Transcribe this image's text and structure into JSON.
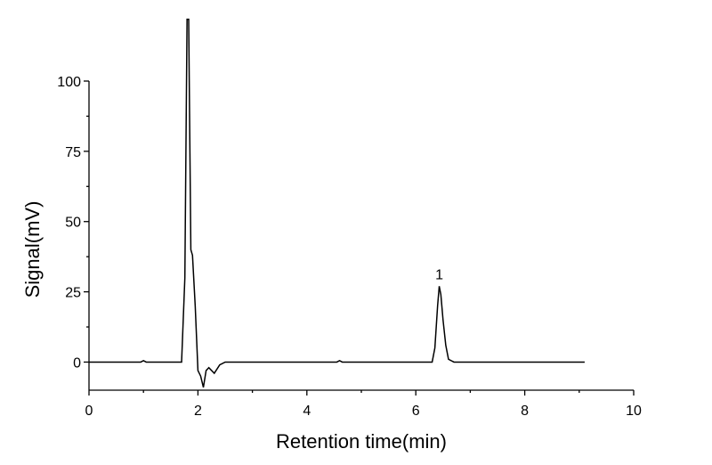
{
  "chart_data": {
    "type": "line",
    "x_label": "Retention time(min)",
    "y_label": "Signal(mV)",
    "series": [
      {
        "color": "#000000",
        "x": [
          0,
          0.95,
          1.0,
          1.05,
          1.7,
          1.76,
          1.8,
          1.83,
          1.87,
          1.9,
          1.95,
          2.0,
          2.05,
          2.1,
          2.15,
          2.2,
          2.3,
          2.4,
          2.5,
          4.55,
          4.6,
          4.65,
          6.3,
          6.35,
          6.4,
          6.43,
          6.46,
          6.5,
          6.55,
          6.6,
          6.7,
          6.9,
          9.1
        ],
        "values": [
          0,
          0,
          0.5,
          0,
          0,
          30,
          122,
          122,
          40,
          38,
          20,
          -3,
          -5,
          -9,
          -3,
          -2,
          -4,
          -1,
          0,
          0,
          0.5,
          0,
          0,
          5,
          20,
          27,
          24,
          15,
          6,
          1,
          0,
          0,
          0
        ]
      }
    ],
    "annotations": [
      {
        "text": "1",
        "x": 6.43,
        "y": 27
      }
    ],
    "xlim": [
      0,
      10
    ],
    "xticks": [
      0,
      2,
      4,
      6,
      8,
      10
    ],
    "ylim": [
      -10,
      100
    ],
    "yticks": [
      0,
      25,
      50,
      75,
      100
    ]
  }
}
